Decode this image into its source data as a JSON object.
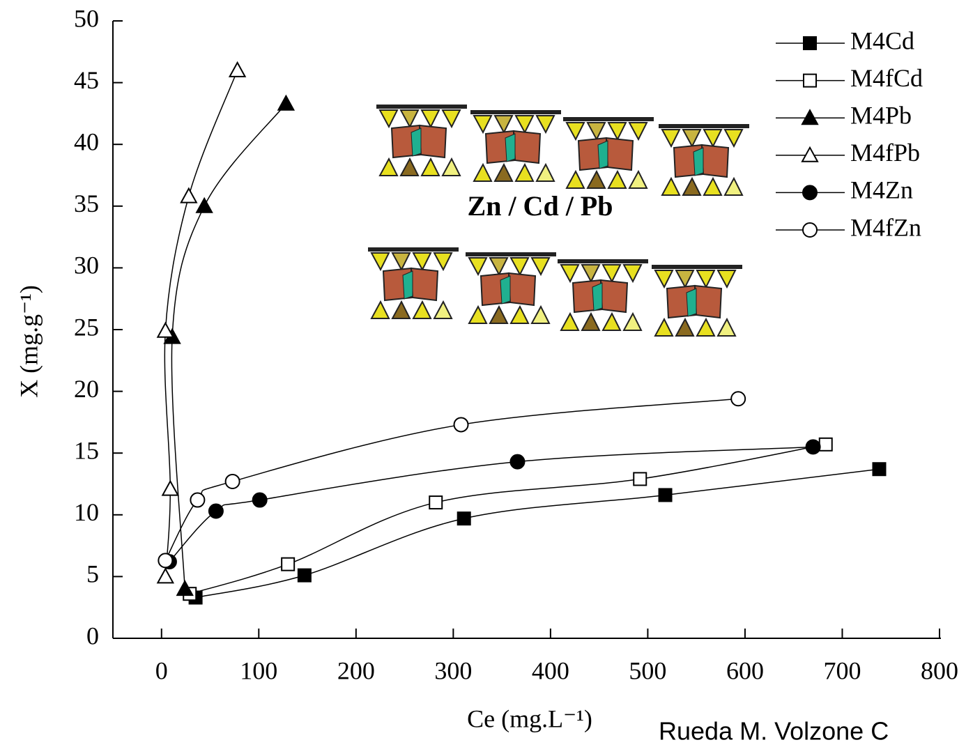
{
  "chart_data": {
    "type": "scatter",
    "x_label": "Ce (mg.L⁻¹)",
    "y_label": "X (mg.g⁻¹)",
    "annotation": "Zn / Cd / Pb",
    "credit": "Rueda M. Volzone C",
    "xlim": [
      -50,
      800
    ],
    "ylim": [
      0,
      50
    ],
    "xticks": [
      0,
      100,
      200,
      300,
      400,
      500,
      600,
      700,
      800
    ],
    "yticks": [
      0,
      5,
      10,
      15,
      20,
      25,
      30,
      35,
      40,
      45,
      50
    ],
    "grid": false,
    "legend": "top-right",
    "series": [
      {
        "name": "M4Cd",
        "color": "#000000",
        "marker": "square",
        "filled": true,
        "x": [
          35,
          147,
          311,
          518,
          738
        ],
        "values": [
          3.3,
          5.1,
          9.7,
          11.6,
          13.7
        ]
      },
      {
        "name": "M4fCd",
        "color": "#000000",
        "marker": "square",
        "filled": false,
        "x": [
          29,
          130,
          282,
          492,
          683
        ],
        "values": [
          3.6,
          6.0,
          11.0,
          12.9,
          15.7
        ]
      },
      {
        "name": "M4Pb",
        "color": "#000000",
        "marker": "triangle",
        "filled": true,
        "x": [
          24,
          11,
          44,
          128
        ],
        "values": [
          4.0,
          24.4,
          35.0,
          43.3
        ]
      },
      {
        "name": "M4fPb",
        "color": "#000000",
        "marker": "triangle",
        "filled": false,
        "x": [
          4,
          9,
          4,
          28,
          78
        ],
        "values": [
          5.0,
          12.1,
          24.9,
          35.8,
          46.0
        ]
      },
      {
        "name": "M4Zn",
        "color": "#000000",
        "marker": "circle",
        "filled": true,
        "x": [
          8,
          56,
          101,
          366,
          670
        ],
        "values": [
          6.2,
          10.3,
          11.2,
          14.3,
          15.5
        ]
      },
      {
        "name": "M4fZn",
        "color": "#000000",
        "marker": "circle",
        "filled": false,
        "x": [
          4,
          37,
          73,
          308,
          593
        ],
        "values": [
          6.3,
          11.2,
          12.7,
          17.3,
          19.4
        ]
      }
    ]
  }
}
